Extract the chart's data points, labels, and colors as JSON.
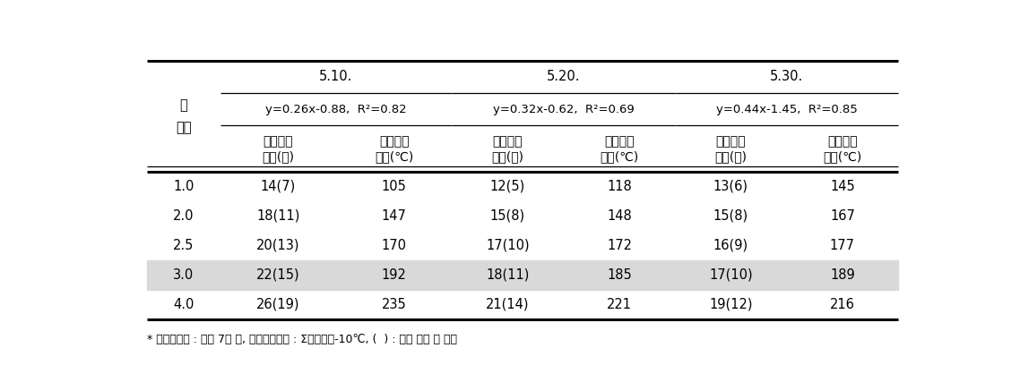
{
  "date_headers": [
    "5.10.",
    "5.20.",
    "5.30."
  ],
  "equations": [
    "y=0.26x-0.88,  R²=0.82",
    "y=0.32x-0.62,  R²=0.69",
    "y=0.44x-1.45,  R²=0.85"
  ],
  "sub_col_headers": [
    [
      "써레질후",
      "일수(일)"
    ],
    [
      "유효적산",
      "온도(℃)"
    ]
  ],
  "row_header": [
    "피",
    "엽령"
  ],
  "rows": [
    [
      "1.0",
      "14(7)",
      "105",
      "12(5)",
      "118",
      "13(6)",
      "145"
    ],
    [
      "2.0",
      "18(11)",
      "147",
      "15(8)",
      "148",
      "15(8)",
      "167"
    ],
    [
      "2.5",
      "20(13)",
      "170",
      "17(10)",
      "172",
      "16(9)",
      "177"
    ],
    [
      "3.0",
      "22(15)",
      "192",
      "18(11)",
      "185",
      "17(10)",
      "189"
    ],
    [
      "4.0",
      "26(19)",
      "235",
      "21(14)",
      "221",
      "19(12)",
      "216"
    ]
  ],
  "highlighted_row": 3,
  "footnote": "* 써레질시기 : 파종 7일 전, 유효적산온도 : Σ평균온도-10℃, (  ) : 복씨 파종 후 일수",
  "highlight_color": "#d9d9d9",
  "background_color": "#ffffff",
  "text_color": "#000000"
}
